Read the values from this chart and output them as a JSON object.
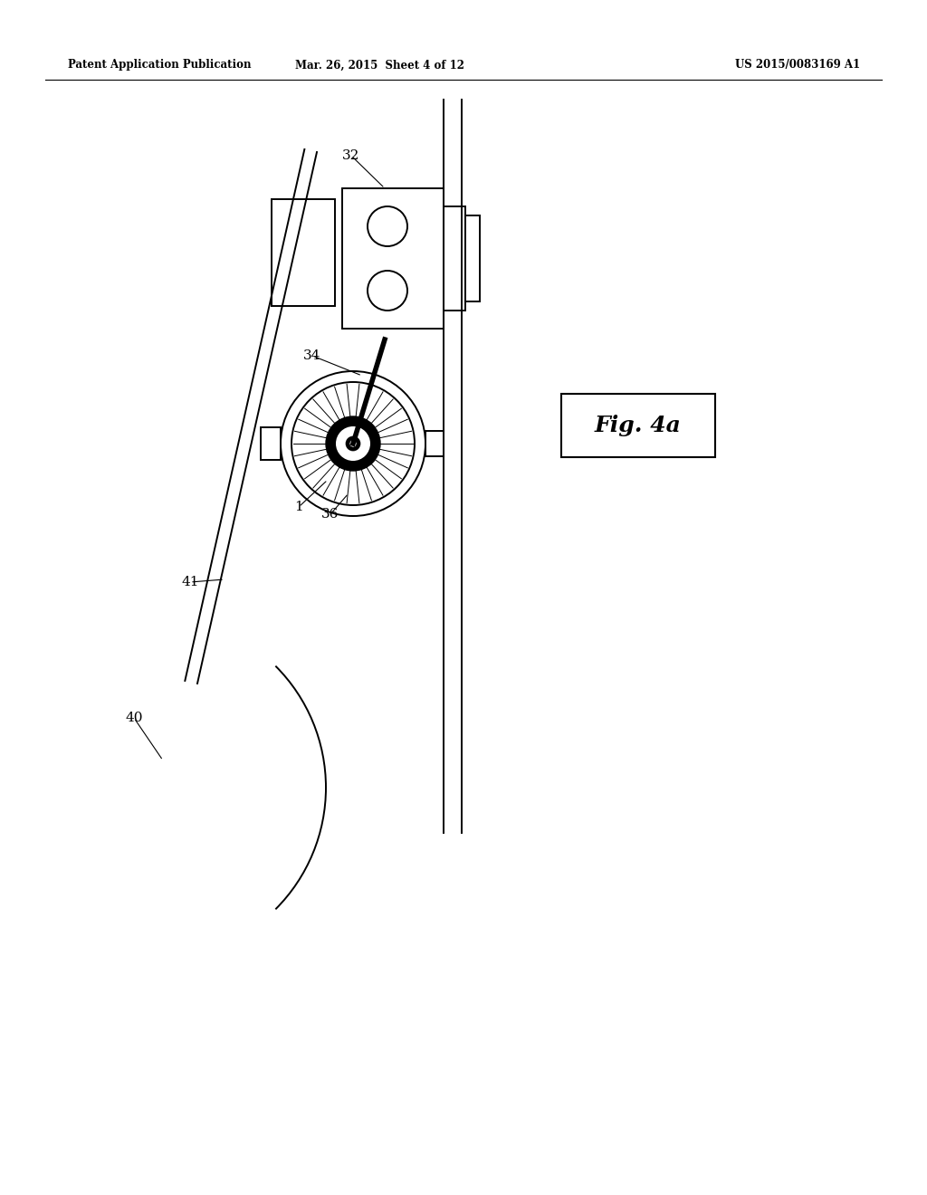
{
  "background_color": "#ffffff",
  "header_left": "Patent Application Publication",
  "header_mid": "Mar. 26, 2015  Sheet 4 of 12",
  "header_right": "US 2015/0083169 A1",
  "fig_label": "Fig. 4a"
}
